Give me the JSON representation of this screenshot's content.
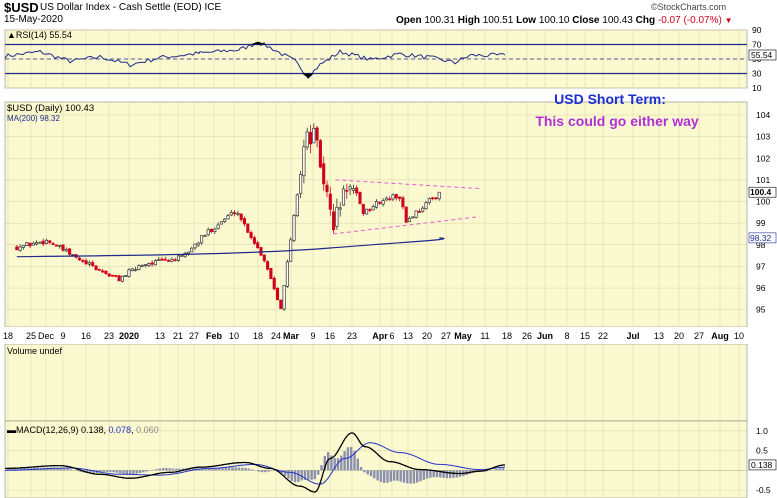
{
  "header": {
    "symbol": "$USD",
    "name": "US Dollar Index - Cash Settle (EOD)",
    "exchange": "ICE",
    "date": "15-May-2020",
    "brand": "©StockCharts.com",
    "ohlc": {
      "open_label": "Open",
      "open": "100.31",
      "high_label": "High",
      "high": "100.51",
      "low_label": "Low",
      "low": "100.10",
      "close_label": "Close",
      "close": "100.43",
      "chg_label": "Chg",
      "chg": "-0.07 (-0.07%)"
    }
  },
  "colors": {
    "panel_bg": "#fbf9cf",
    "grid": "#d8d3a6",
    "up": "#333333",
    "down": "#d0021b",
    "rsi_band": "#1f2a8c",
    "rsi_fill": "#000000",
    "ma": "#1f2a8c",
    "trend": "#e55ed3",
    "annotation_title": "#1b2fd1",
    "annotation_sub": "#b12fd8",
    "macd_line": "#000000",
    "signal_line": "#2233cc",
    "hist": "#8a8fb0"
  },
  "chart_data": [
    {
      "panel": "rsi",
      "type": "line",
      "legend": "RSI(14)",
      "last": "55.54",
      "y_ticks": [
        "90",
        "70",
        "50",
        "30",
        "10"
      ],
      "last_tag": "55.54",
      "ylim": [
        10,
        90
      ],
      "overbought": 70,
      "oversold": 30
    },
    {
      "panel": "price",
      "type": "candlestick",
      "title": "$USD (Daily) 100.43",
      "ma_legend": "MA(200) 98.32",
      "annotation_title": "USD Short Term:",
      "annotation_subtitle": "This could go either way",
      "ylim": [
        94.2,
        104.6
      ],
      "y_ticks": [
        "104",
        "103",
        "102",
        "101",
        "100",
        "99",
        "98",
        "97",
        "96",
        "95"
      ],
      "last_tag": "100.4",
      "ma_tag": "98.32",
      "x_ticks": [
        "18",
        "25",
        "Dec",
        "9",
        "16",
        "23",
        "2020",
        "13",
        "21",
        "27",
        "Feb",
        "10",
        "18",
        "24",
        "Mar",
        "9",
        "16",
        "23",
        "Apr",
        "6",
        "13",
        "20",
        "27",
        "May",
        "11",
        "18",
        "26",
        "Jun",
        "8",
        "15",
        "22",
        "Jul",
        "13",
        "20",
        "27",
        "Aug",
        "10"
      ],
      "x_ticks_bold": [
        "2020",
        "Feb",
        "Mar",
        "Apr",
        "May",
        "Jun",
        "Jul",
        "Aug"
      ],
      "checkpoints": [
        {
          "date": "Nov 18",
          "close": 97.9
        },
        {
          "date": "Dec 1",
          "close": 98.2
        },
        {
          "date": "Dec 16",
          "close": 97.2
        },
        {
          "date": "Dec 31",
          "close": 96.4
        },
        {
          "date": "Jan 10",
          "close": 97.1
        },
        {
          "date": "Jan 27",
          "close": 97.4
        },
        {
          "date": "Feb 7",
          "close": 98.6
        },
        {
          "date": "Feb 19",
          "close": 99.6
        },
        {
          "date": "Mar 2",
          "close": 97.3
        },
        {
          "date": "Mar 9",
          "close": 95.1
        },
        {
          "date": "Mar 19",
          "close": 102.8
        },
        {
          "date": "Mar 23",
          "close": 103.1
        },
        {
          "date": "Mar 31",
          "close": 98.9
        },
        {
          "date": "Apr 6",
          "close": 100.8
        },
        {
          "date": "Apr 13",
          "close": 99.5
        },
        {
          "date": "Apr 20",
          "close": 100.0
        },
        {
          "date": "Apr 28",
          "close": 100.3
        },
        {
          "date": "May 1",
          "close": 99.1
        },
        {
          "date": "May 15",
          "close": 100.43
        }
      ],
      "ma200": [
        [
          "Nov 18",
          97.45
        ],
        [
          "May 15",
          98.32
        ]
      ],
      "upper_trend": [
        [
          "Apr 1",
          101.0
        ],
        [
          "Jun 1",
          100.6
        ]
      ],
      "lower_trend": [
        [
          "Mar 31",
          98.5
        ],
        [
          "Jun 1",
          99.3
        ]
      ]
    },
    {
      "panel": "volume",
      "type": "bar",
      "legend": "Volume undef"
    },
    {
      "panel": "macd",
      "type": "line",
      "legend_label": "MACD(12,26,9)",
      "macd": "0.138",
      "signal": "0.078",
      "histogram": "0.060",
      "y_ticks": [
        "1.0",
        "0.5",
        "0.138",
        "-0.5"
      ],
      "last_tag": "0.138",
      "ylim": [
        -0.7,
        1.25
      ]
    }
  ]
}
